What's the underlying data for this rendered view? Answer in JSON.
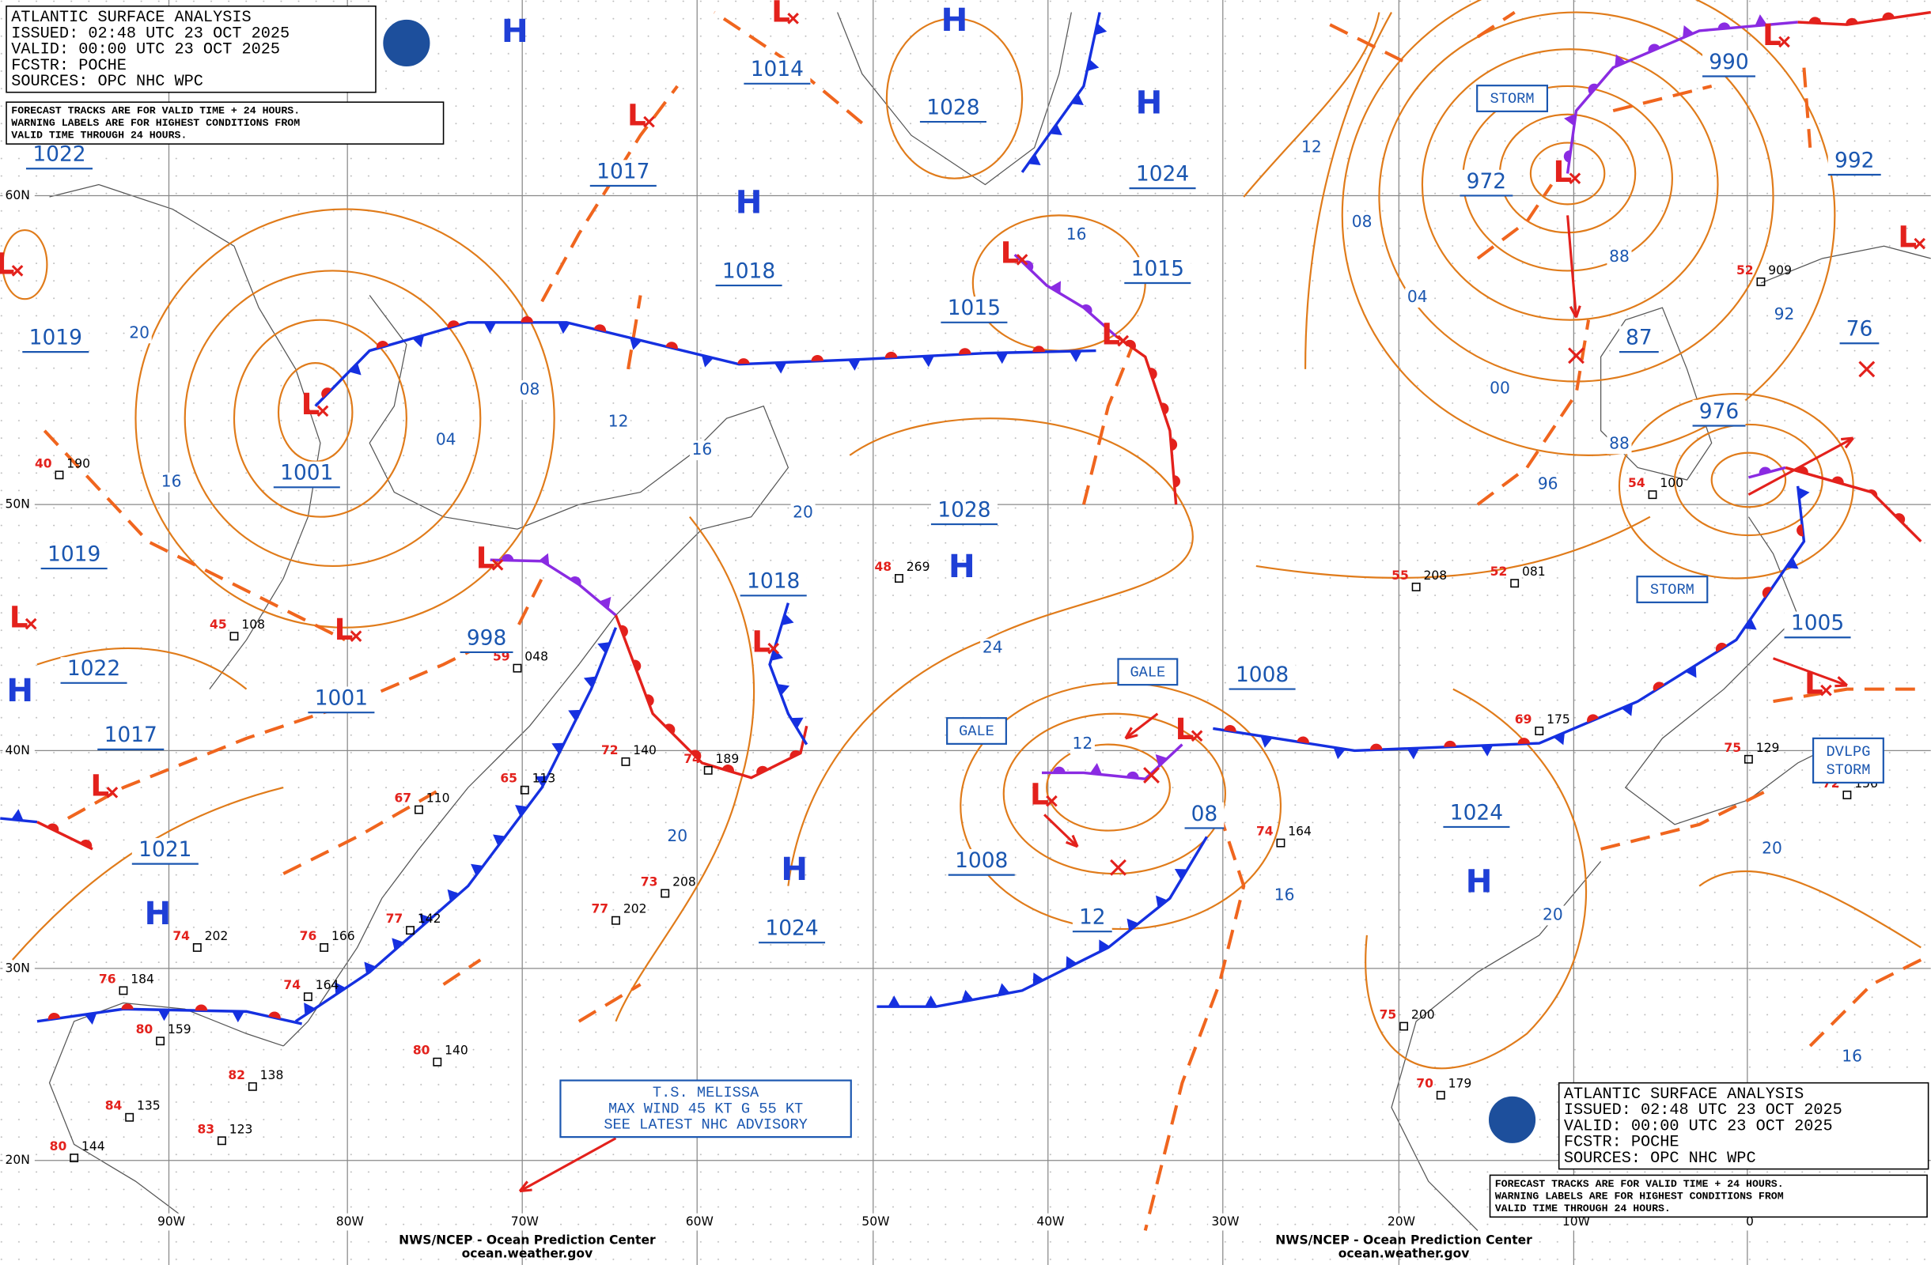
{
  "legend": {
    "title": "ATLANTIC SURFACE ANALYSIS",
    "issued": "ISSUED: 02:48 UTC 23 OCT 2025",
    "valid": "VALID: 00:00 UTC 23 OCT 2025",
    "forecaster": "FCSTR: POCHE",
    "sources": "SOURCES: OPC NHC WPC",
    "note": [
      "FORECAST TRACKS ARE FOR VALID TIME + 24 HOURS.",
      "WARNING LABELS ARE FOR HIGHEST CONDITIONS FROM",
      "VALID TIME THROUGH 24 HOURS."
    ]
  },
  "latitudes": [
    "60N",
    "50N",
    "40N",
    "30N",
    "20N"
  ],
  "longitudes": [
    "90W",
    "80W",
    "70W",
    "60W",
    "50W",
    "40W",
    "30W",
    "20W",
    "10W",
    "0"
  ],
  "pressures": [
    "1022",
    "1019",
    "1019",
    "1022",
    "1017",
    "1021",
    "1001",
    "1001",
    "998",
    "1014",
    "1017",
    "1018",
    "1028",
    "1024",
    "1015",
    "1015",
    "1028",
    "1018",
    "1024",
    "1008",
    "12",
    "1008",
    "08",
    "1024",
    "990",
    "972",
    "992",
    "87",
    "976",
    "76",
    "1005"
  ],
  "isobar_labels": [
    "20",
    "08",
    "12",
    "04",
    "16",
    "16",
    "20",
    "16",
    "12",
    "08",
    "04",
    "00",
    "88",
    "92",
    "88",
    "96",
    "24",
    "12",
    "20",
    "16",
    "20",
    "20",
    "16"
  ],
  "highs": [
    "H",
    "H",
    "H",
    "H",
    "H",
    "H",
    "H",
    "H",
    "H"
  ],
  "lows": [
    "L",
    "L",
    "L",
    "L",
    "L",
    "L",
    "L",
    "L",
    "L",
    "L",
    "L",
    "L",
    "L",
    "L",
    "L",
    "L",
    "L"
  ],
  "warnings": [
    [
      "STORM"
    ],
    [
      "STORM"
    ],
    [
      "GALE"
    ],
    [
      "GALE"
    ],
    [
      "DVLPG",
      "STORM"
    ]
  ],
  "advisory": [
    "T.S. MELISSA",
    "MAX WIND 45 KT G 55 KT",
    "SEE LATEST NHC ADVISORY"
  ],
  "credits": [
    "NWS/NCEP - Ocean Prediction Center",
    "ocean.weather.gov"
  ],
  "stations": [
    {
      "temp": "40",
      "pressure": "190"
    },
    {
      "temp": "45",
      "pressure": "108"
    },
    {
      "temp": "59",
      "pressure": "048"
    },
    {
      "temp": "65",
      "pressure": "113"
    },
    {
      "temp": "67",
      "pressure": "110"
    },
    {
      "temp": "77",
      "pressure": "142"
    },
    {
      "temp": "76",
      "pressure": "166"
    },
    {
      "temp": "74",
      "pressure": "202"
    },
    {
      "temp": "76",
      "pressure": "184"
    },
    {
      "temp": "74",
      "pressure": "164"
    },
    {
      "temp": "80",
      "pressure": "159"
    },
    {
      "temp": "80",
      "pressure": "140"
    },
    {
      "temp": "82",
      "pressure": "138"
    },
    {
      "temp": "84",
      "pressure": "135"
    },
    {
      "temp": "83",
      "pressure": "123"
    },
    {
      "temp": "80",
      "pressure": "144"
    },
    {
      "temp": "72",
      "pressure": "140"
    },
    {
      "temp": "74",
      "pressure": "189"
    },
    {
      "temp": "73",
      "pressure": "208"
    },
    {
      "temp": "77",
      "pressure": "202"
    },
    {
      "temp": "48",
      "pressure": "269"
    },
    {
      "temp": "55",
      "pressure": "208"
    },
    {
      "temp": "52",
      "pressure": "081"
    },
    {
      "temp": "74",
      "pressure": "164"
    },
    {
      "temp": "69",
      "pressure": "175"
    },
    {
      "temp": "75",
      "pressure": "200"
    },
    {
      "temp": "70",
      "pressure": "179"
    },
    {
      "temp": "54",
      "pressure": "100"
    },
    {
      "temp": "52",
      "pressure": "909"
    },
    {
      "temp": "72",
      "pressure": "156"
    },
    {
      "temp": "75",
      "pressure": "129"
    }
  ]
}
